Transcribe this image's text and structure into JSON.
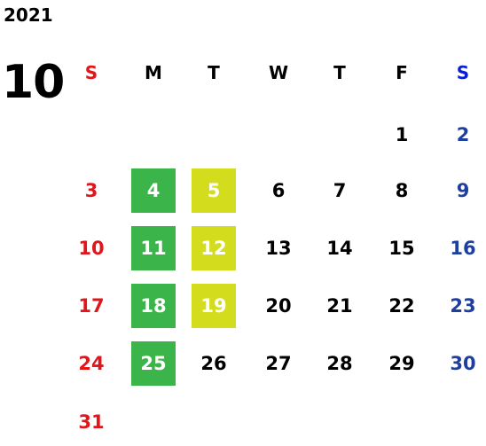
{
  "year": "2021",
  "month": "10",
  "colors": {
    "sunday": "#e0161a",
    "saturday": "#1e3fa0",
    "saturday_header": "#0a1ed8",
    "weekday": "#000000",
    "highlight_green": "#3bb54a",
    "highlight_yellow": "#d4dc1e",
    "highlight_text": "#ffffff"
  },
  "weekday_headers": [
    "S",
    "M",
    "T",
    "W",
    "T",
    "F",
    "S"
  ],
  "weeks": [
    [
      "",
      "",
      "",
      "",
      "",
      "1",
      "2"
    ],
    [
      "3",
      "4",
      "5",
      "6",
      "7",
      "8",
      "9"
    ],
    [
      "10",
      "11",
      "12",
      "13",
      "14",
      "15",
      "16"
    ],
    [
      "17",
      "18",
      "19",
      "20",
      "21",
      "22",
      "23"
    ],
    [
      "24",
      "25",
      "26",
      "27",
      "28",
      "29",
      "30"
    ],
    [
      "31",
      "",
      "",
      "",
      "",
      "",
      ""
    ]
  ],
  "highlighted_days": {
    "4": "green",
    "11": "green",
    "18": "green",
    "25": "green",
    "5": "yellow",
    "12": "yellow",
    "19": "yellow"
  }
}
